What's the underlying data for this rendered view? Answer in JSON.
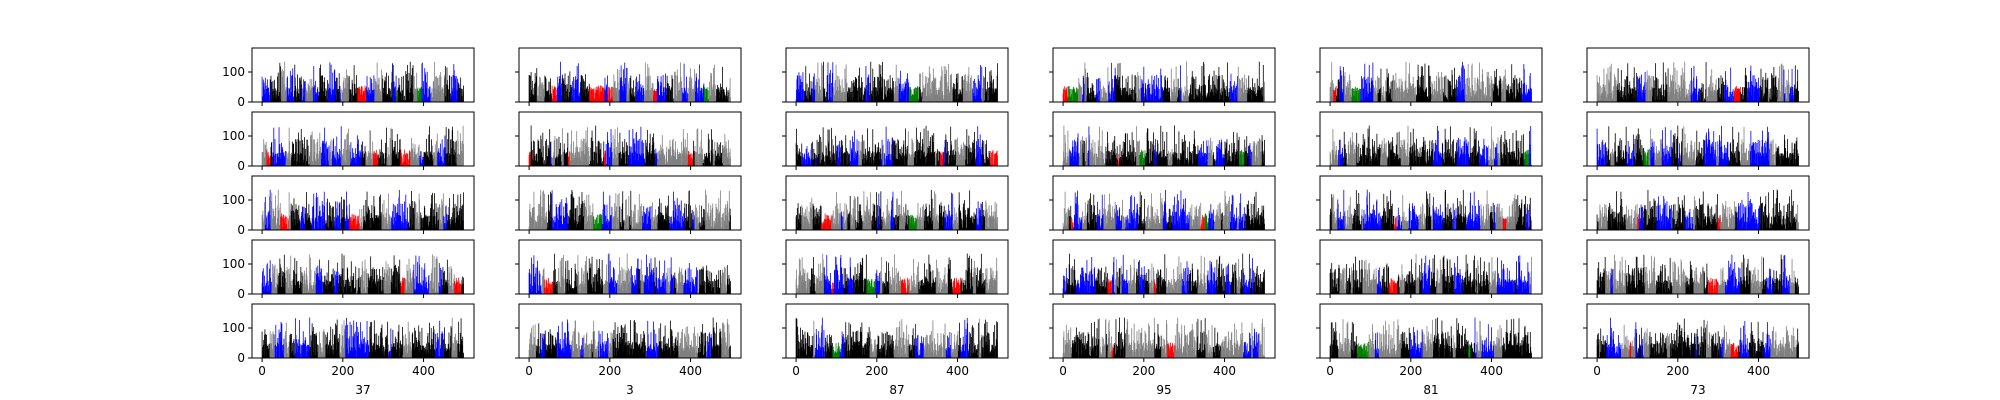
{
  "figure": {
    "background": "#ffffff"
  },
  "chart_data": {
    "type": "bar",
    "layout": "grid",
    "rows": 5,
    "columns": 6,
    "shared_y": true,
    "xlim": [
      -25,
      525
    ],
    "ylim": [
      0,
      180
    ],
    "xticks": [
      0,
      200,
      400
    ],
    "yticks": [
      0,
      100
    ],
    "column_labels": [
      "37",
      "3",
      "87",
      "95",
      "81",
      "73"
    ],
    "bar_count_per_panel": 500,
    "bar_colors": {
      "dark": "#000000",
      "mid": "#808080",
      "blue": "#0000ff",
      "red": "#ff0000",
      "green": "#008000"
    },
    "value_range_note_max": 150
  }
}
